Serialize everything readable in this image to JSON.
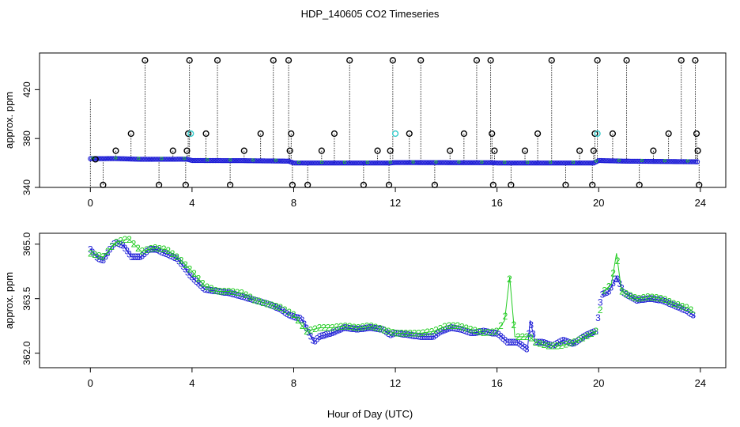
{
  "title": "HDP_140605  CO2 Timeseries",
  "xlabel": "Hour of Day (UTC)",
  "colors": {
    "blue": "#1f1fd6",
    "green": "#22cc22",
    "cyan": "#33cccc",
    "black": "#000000"
  },
  "chart_data": [
    {
      "type": "scatter",
      "ylabel": "approx. ppm",
      "xlim": [
        -2,
        25
      ],
      "ylim": [
        340,
        450
      ],
      "x_ticks": [
        0,
        4,
        8,
        12,
        16,
        20,
        24
      ],
      "y_ticks": [
        340,
        380,
        420
      ],
      "y_tick_labels": [
        "340",
        "380",
        "420"
      ],
      "grid": false,
      "segment_breaks": [
        3.9,
        7.9,
        11.9,
        15.9,
        19.9
      ],
      "baseline_points": [
        [
          0,
          363.5
        ],
        [
          1,
          363.6
        ],
        [
          2,
          363.0
        ],
        [
          3.8,
          363.1
        ],
        [
          4.0,
          362.0
        ],
        [
          6,
          361.9
        ],
        [
          7.8,
          361.5
        ],
        [
          8.0,
          360.0
        ],
        [
          11.8,
          360.0
        ],
        [
          12.0,
          360.3
        ],
        [
          15.8,
          360.2
        ],
        [
          16.0,
          360.0
        ],
        [
          19.8,
          360.0
        ],
        [
          20.0,
          362.0
        ],
        [
          21,
          361.5
        ],
        [
          23.8,
          361.0
        ]
      ],
      "cal_outliers": [
        {
          "x": 0.2,
          "y": 363
        },
        {
          "x": 0.5,
          "y": 342
        },
        {
          "x": 1.0,
          "y": 370
        },
        {
          "x": 1.6,
          "y": 384
        },
        {
          "x": 2.15,
          "y": 444
        },
        {
          "x": 2.7,
          "y": 342
        },
        {
          "x": 3.25,
          "y": 370
        },
        {
          "x": 3.75,
          "y": 342
        },
        {
          "x": 3.8,
          "y": 370
        },
        {
          "x": 3.85,
          "y": 384
        },
        {
          "x": 3.9,
          "y": 444
        },
        {
          "x": 4.55,
          "y": 384
        },
        {
          "x": 5.0,
          "y": 444
        },
        {
          "x": 5.5,
          "y": 342
        },
        {
          "x": 6.05,
          "y": 370
        },
        {
          "x": 6.7,
          "y": 384
        },
        {
          "x": 7.2,
          "y": 444
        },
        {
          "x": 7.8,
          "y": 444
        },
        {
          "x": 7.85,
          "y": 370
        },
        {
          "x": 7.9,
          "y": 384
        },
        {
          "x": 7.95,
          "y": 342
        },
        {
          "x": 8.55,
          "y": 342
        },
        {
          "x": 9.1,
          "y": 370
        },
        {
          "x": 9.6,
          "y": 384
        },
        {
          "x": 10.2,
          "y": 444
        },
        {
          "x": 10.75,
          "y": 342
        },
        {
          "x": 11.3,
          "y": 370
        },
        {
          "x": 11.75,
          "y": 342
        },
        {
          "x": 11.8,
          "y": 370
        },
        {
          "x": 11.9,
          "y": 444
        },
        {
          "x": 12.55,
          "y": 384
        },
        {
          "x": 13.0,
          "y": 444
        },
        {
          "x": 13.55,
          "y": 342
        },
        {
          "x": 14.15,
          "y": 370
        },
        {
          "x": 14.7,
          "y": 384
        },
        {
          "x": 15.2,
          "y": 444
        },
        {
          "x": 15.75,
          "y": 444
        },
        {
          "x": 15.8,
          "y": 384
        },
        {
          "x": 15.85,
          "y": 342
        },
        {
          "x": 15.9,
          "y": 370
        },
        {
          "x": 16.55,
          "y": 342
        },
        {
          "x": 17.1,
          "y": 370
        },
        {
          "x": 17.6,
          "y": 384
        },
        {
          "x": 18.15,
          "y": 444
        },
        {
          "x": 18.7,
          "y": 342
        },
        {
          "x": 19.25,
          "y": 370
        },
        {
          "x": 19.75,
          "y": 342
        },
        {
          "x": 19.8,
          "y": 370
        },
        {
          "x": 19.85,
          "y": 384
        },
        {
          "x": 19.95,
          "y": 444
        },
        {
          "x": 20.55,
          "y": 384
        },
        {
          "x": 21.1,
          "y": 444
        },
        {
          "x": 21.6,
          "y": 342
        },
        {
          "x": 22.15,
          "y": 370
        },
        {
          "x": 22.75,
          "y": 384
        },
        {
          "x": 23.25,
          "y": 444
        },
        {
          "x": 23.8,
          "y": 444
        },
        {
          "x": 23.85,
          "y": 384
        },
        {
          "x": 23.9,
          "y": 370
        },
        {
          "x": 23.95,
          "y": 342
        }
      ],
      "cyan_points": [
        {
          "x": 3.95,
          "y": 384
        },
        {
          "x": 12.0,
          "y": 384
        },
        {
          "x": 19.95,
          "y": 384
        }
      ]
    },
    {
      "type": "scatter",
      "ylabel": "approx. ppm",
      "xlim": [
        -2,
        25
      ],
      "ylim": [
        361.6,
        365.3
      ],
      "x_ticks": [
        0,
        4,
        8,
        12,
        16,
        20,
        24
      ],
      "y_ticks": [
        362.0,
        363.5,
        365.0
      ],
      "y_tick_labels": [
        "362.0",
        "363.5",
        "365.0"
      ],
      "grid": false,
      "series": [
        {
          "symbol": "3",
          "color": "blue",
          "values": [
            [
              0,
              364.85
            ],
            [
              0.3,
              364.6
            ],
            [
              0.5,
              364.55
            ],
            [
              0.8,
              364.9
            ],
            [
              1.0,
              365.05
            ],
            [
              1.3,
              364.95
            ],
            [
              1.6,
              364.65
            ],
            [
              2.0,
              364.65
            ],
            [
              2.3,
              364.85
            ],
            [
              2.6,
              364.85
            ],
            [
              2.9,
              364.75
            ],
            [
              3.1,
              364.7
            ],
            [
              3.4,
              364.6
            ],
            [
              3.7,
              364.35
            ],
            [
              3.9,
              364.15
            ],
            [
              4.2,
              363.95
            ],
            [
              4.5,
              363.75
            ],
            [
              5.0,
              363.7
            ],
            [
              5.5,
              363.65
            ],
            [
              6.0,
              363.55
            ],
            [
              6.5,
              363.45
            ],
            [
              7.0,
              363.35
            ],
            [
              7.5,
              363.2
            ],
            [
              7.8,
              363.05
            ],
            [
              8.0,
              363.0
            ],
            [
              8.3,
              362.95
            ],
            [
              8.6,
              362.55
            ],
            [
              8.8,
              362.3
            ],
            [
              9.0,
              362.45
            ],
            [
              9.5,
              362.55
            ],
            [
              10.0,
              362.7
            ],
            [
              10.5,
              362.65
            ],
            [
              11.0,
              362.7
            ],
            [
              11.5,
              362.65
            ],
            [
              11.8,
              362.5
            ],
            [
              12.0,
              362.55
            ],
            [
              12.5,
              362.5
            ],
            [
              13.0,
              362.45
            ],
            [
              13.5,
              362.45
            ],
            [
              13.8,
              362.6
            ],
            [
              14.2,
              362.7
            ],
            [
              14.6,
              362.65
            ],
            [
              15.0,
              362.55
            ],
            [
              15.5,
              362.6
            ],
            [
              15.8,
              362.55
            ],
            [
              16.0,
              362.55
            ],
            [
              16.4,
              362.3
            ],
            [
              16.8,
              362.3
            ],
            [
              17.2,
              362.1
            ],
            [
              17.3,
              362.9
            ],
            [
              17.5,
              362.3
            ],
            [
              17.8,
              362.3
            ],
            [
              18.2,
              362.2
            ],
            [
              18.6,
              362.35
            ],
            [
              19.0,
              362.25
            ],
            [
              19.4,
              362.45
            ],
            [
              19.7,
              362.55
            ],
            [
              19.9,
              362.6
            ],
            [
              20.1,
              363.6
            ],
            [
              20.4,
              363.7
            ],
            [
              20.7,
              364.1
            ],
            [
              21.0,
              363.65
            ],
            [
              21.5,
              363.45
            ],
            [
              22.0,
              363.5
            ],
            [
              22.5,
              363.45
            ],
            [
              23.0,
              363.3
            ],
            [
              23.5,
              363.15
            ],
            [
              23.8,
              363.0
            ]
          ]
        },
        {
          "symbol": "2",
          "color": "green",
          "values": [
            [
              0,
              364.75
            ],
            [
              0.5,
              364.65
            ],
            [
              1.0,
              365.05
            ],
            [
              1.5,
              365.15
            ],
            [
              2.0,
              364.8
            ],
            [
              2.5,
              364.9
            ],
            [
              3.0,
              364.85
            ],
            [
              3.5,
              364.6
            ],
            [
              4.0,
              364.25
            ],
            [
              4.5,
              363.85
            ],
            [
              5.0,
              363.7
            ],
            [
              5.5,
              363.7
            ],
            [
              6.0,
              363.65
            ],
            [
              6.5,
              363.45
            ],
            [
              7.0,
              363.35
            ],
            [
              7.5,
              363.25
            ],
            [
              8.0,
              363.05
            ],
            [
              8.5,
              362.6
            ],
            [
              9.0,
              362.7
            ],
            [
              9.5,
              362.7
            ],
            [
              10.0,
              362.75
            ],
            [
              10.5,
              362.7
            ],
            [
              11.0,
              362.75
            ],
            [
              11.5,
              362.65
            ],
            [
              12.0,
              362.55
            ],
            [
              13.0,
              362.55
            ],
            [
              13.5,
              362.6
            ],
            [
              14.0,
              362.75
            ],
            [
              14.5,
              362.75
            ],
            [
              15.0,
              362.65
            ],
            [
              15.5,
              362.55
            ],
            [
              16.0,
              362.6
            ],
            [
              16.3,
              362.9
            ],
            [
              16.5,
              364.1
            ],
            [
              16.7,
              362.45
            ],
            [
              17.0,
              362.45
            ],
            [
              17.3,
              362.45
            ],
            [
              17.5,
              362.3
            ],
            [
              18.0,
              362.2
            ],
            [
              18.5,
              362.2
            ],
            [
              19.0,
              362.3
            ],
            [
              19.5,
              362.45
            ],
            [
              19.9,
              362.6
            ],
            [
              20.2,
              363.7
            ],
            [
              20.5,
              363.9
            ],
            [
              20.7,
              364.75
            ],
            [
              20.9,
              363.7
            ],
            [
              21.5,
              363.5
            ],
            [
              22.0,
              363.55
            ],
            [
              22.5,
              363.5
            ],
            [
              23.0,
              363.35
            ],
            [
              23.5,
              363.25
            ],
            [
              23.8,
              363.1
            ]
          ]
        }
      ]
    }
  ]
}
